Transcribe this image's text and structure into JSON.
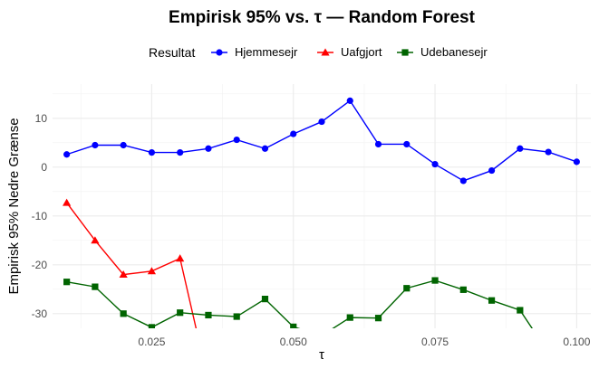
{
  "chart_data": {
    "type": "line",
    "title": "Empirisk 95% vs. τ — Random Forest",
    "xlabel": "τ",
    "ylabel": "Empirisk 95% Nedre Grænse",
    "legend_title": "Resultat",
    "legend_position": "top",
    "xlim": [
      0.0075,
      0.1025
    ],
    "ylim": [
      -33,
      17
    ],
    "grid": true,
    "x_ticks": [
      0.025,
      0.05,
      0.075,
      0.1
    ],
    "x_tick_labels": [
      "0.025",
      "0.050",
      "0.075",
      "0.100"
    ],
    "x_minor_ticks": [
      0.0125,
      0.0375,
      0.0625,
      0.0875
    ],
    "y_ticks": [
      -30,
      -20,
      -10,
      0,
      10
    ],
    "y_tick_labels": [
      "-30",
      "-20",
      "-10",
      "0",
      "10"
    ],
    "y_minor_ticks": [
      -25,
      -15,
      -5,
      5,
      15
    ],
    "series": [
      {
        "name": "Hjemmesejr",
        "color": "#0000ff",
        "marker": "circle",
        "x": [
          0.01,
          0.015,
          0.02,
          0.025,
          0.03,
          0.035,
          0.04,
          0.045,
          0.05,
          0.055,
          0.06,
          0.065,
          0.07,
          0.075,
          0.08,
          0.085,
          0.09,
          0.095,
          0.1
        ],
        "y": [
          2.6,
          4.5,
          4.5,
          3.0,
          3.0,
          3.8,
          5.6,
          3.8,
          6.8,
          9.3,
          13.6,
          4.7,
          4.7,
          0.6,
          -2.8,
          -0.7,
          3.8,
          3.1,
          1.1
        ]
      },
      {
        "name": "Uafgjort",
        "color": "#ff0000",
        "marker": "triangle",
        "x": [
          0.01,
          0.015,
          0.02,
          0.025,
          0.03,
          0.035
        ],
        "y": [
          -7.3,
          -15.0,
          -22.0,
          -21.3,
          -18.7,
          -44.0
        ]
      },
      {
        "name": "Udebanesejr",
        "color": "#006400",
        "marker": "square",
        "x": [
          0.01,
          0.015,
          0.02,
          0.025,
          0.03,
          0.035,
          0.04,
          0.045,
          0.05,
          0.055,
          0.06,
          0.065,
          0.07,
          0.075,
          0.08,
          0.085,
          0.09,
          0.095
        ],
        "y": [
          -23.5,
          -24.5,
          -30.0,
          -32.8,
          -29.8,
          -30.3,
          -30.6,
          -27.0,
          -32.7,
          -34.5,
          -30.8,
          -30.9,
          -24.8,
          -23.2,
          -25.1,
          -27.3,
          -29.3,
          -38.0
        ]
      }
    ]
  }
}
